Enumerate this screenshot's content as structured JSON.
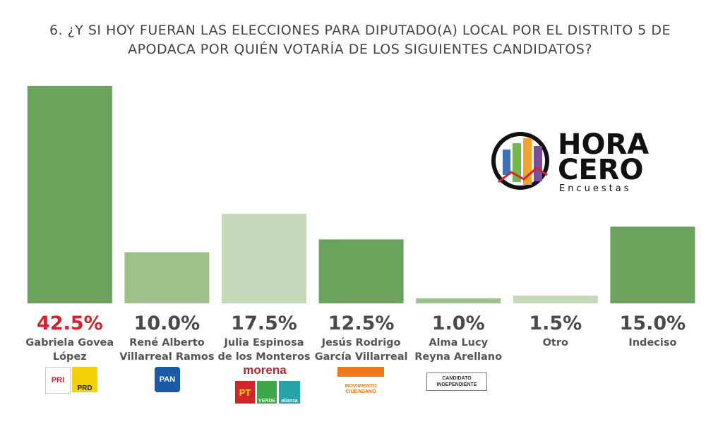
{
  "chart_data": {
    "type": "bar",
    "title": "6. ¿Y SI HOY FUERAN LAS ELECCIONES PARA DIPUTADO(A) LOCAL POR EL DISTRITO 5 DE\nAPODACA POR QUIÉN VOTARÍA DE LOS SIGUIENTES CANDIDATOS?",
    "categories": [
      "Gabriela Govea\nLópez",
      "René Alberto\nVillarreal Ramos",
      "Julia Espinosa\nde los Monteros",
      "Jesús Rodrigo\nGarcía Villarreal",
      "Alma Lucy\nReyna Arellano",
      "Otro",
      "Indeciso"
    ],
    "values": [
      42.5,
      10.0,
      17.5,
      12.5,
      1.0,
      1.5,
      15.0
    ],
    "value_labels": [
      "42.5%",
      "10.0%",
      "17.5%",
      "12.5%",
      "1.0%",
      "1.5%",
      "15.0%"
    ],
    "colors": [
      "#6aa35c",
      "#9dc188",
      "#c5d8b9",
      "#6aa35c",
      "#9dc188",
      "#c5d8b9",
      "#6aa35c"
    ],
    "value_label_colors": [
      "#d3232b",
      "#4a4a4a",
      "#4a4a4a",
      "#4a4a4a",
      "#4a4a4a",
      "#4a4a4a",
      "#4a4a4a"
    ]
  },
  "brand": {
    "name_top": "HORA",
    "name_bottom": "CERO",
    "tagline": "Encuestas"
  },
  "logos": {
    "pri": "PRI",
    "prd": "PRD",
    "pan": "PAN",
    "morena": "morena",
    "pt": "PT",
    "verde": "VERDE",
    "alianza": "alianza",
    "mc": "MOVIMIENTO CIUDADANO",
    "independiente": "CANDIDATO INDEPENDIENTE"
  }
}
